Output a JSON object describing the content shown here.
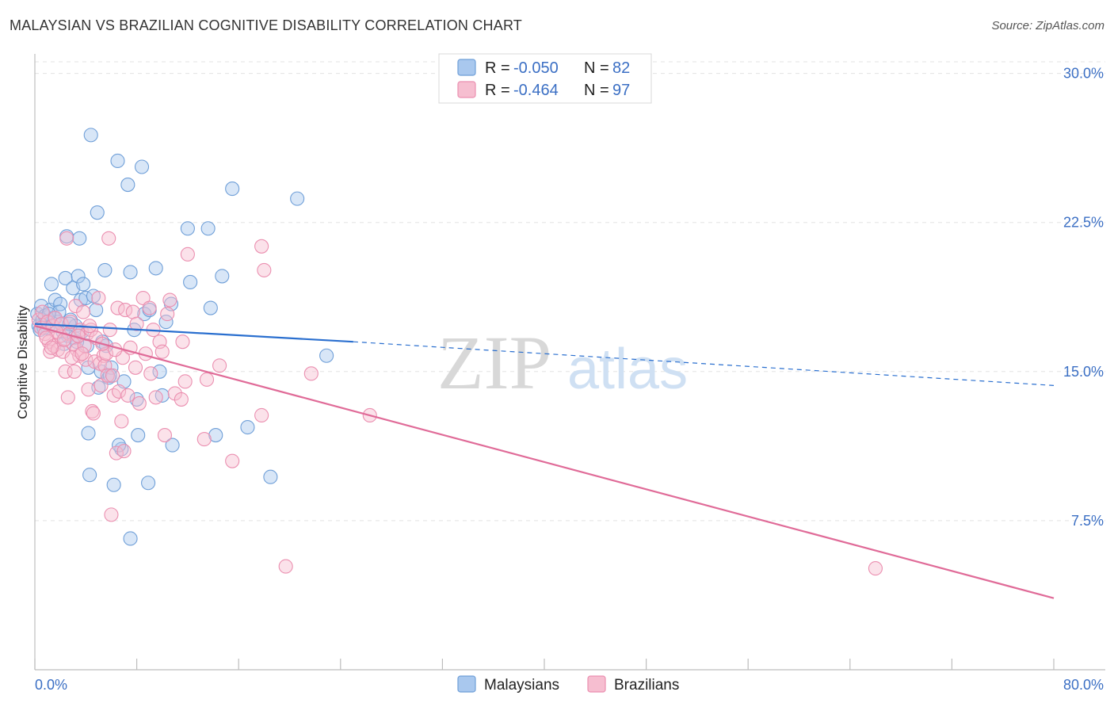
{
  "header": {
    "title": "MALAYSIAN VS BRAZILIAN COGNITIVE DISABILITY CORRELATION CHART",
    "source": "Source: ZipAtlas.com"
  },
  "watermark": {
    "zip": "ZIP",
    "atlas": "atlas"
  },
  "legend": {
    "rows": [
      {
        "r_label": "R = ",
        "r_value": "-0.050",
        "n_label": "N = ",
        "n_value": "82",
        "color": "#7aaee8"
      },
      {
        "r_label": "R = ",
        "r_value": "-0.464",
        "n_label": "N = ",
        "n_value": "97",
        "color": "#f19bb8"
      }
    ]
  },
  "bottom_legend": {
    "malaysians": "Malaysians",
    "brazilians": "Brazilians"
  },
  "colors": {
    "malaysian_fill": "#a9c8ee",
    "malaysian_stroke": "#6f9fd8",
    "malaysian_line": "#2a6fcf",
    "brazilian_fill": "#f6bed0",
    "brazilian_stroke": "#eb8fb0",
    "brazilian_line": "#e06b98",
    "grid": "#e3e3e3",
    "tick_text": "#3b6fc4"
  },
  "chart_data": {
    "type": "scatter",
    "title": "MALAYSIAN VS BRAZILIAN COGNITIVE DISABILITY CORRELATION CHART",
    "xlabel": "",
    "ylabel": "Cognitive Disability",
    "xlim": [
      0,
      80
    ],
    "ylim": [
      0,
      31.5
    ],
    "x_tick_labels": [
      "0.0%",
      "80.0%"
    ],
    "y_ticks": [
      7.5,
      15.0,
      22.5,
      30.0
    ],
    "y_tick_labels": [
      "7.5%",
      "15.0%",
      "22.5%",
      "30.0%"
    ],
    "grid": "horizontal dashed",
    "legend_placement": "top-center",
    "series": [
      {
        "name": "Malaysians",
        "r": -0.05,
        "n": 82,
        "trend": {
          "x": [
            0,
            25,
            80
          ],
          "y": [
            17.4,
            16.5,
            14.3
          ],
          "solid_until": 25
        },
        "points": [
          [
            0.2,
            17.9
          ],
          [
            0.3,
            17.3
          ],
          [
            0.4,
            17.1
          ],
          [
            0.5,
            18.3
          ],
          [
            0.6,
            17.6
          ],
          [
            0.8,
            17.8
          ],
          [
            1.0,
            17.2
          ],
          [
            1.2,
            18.1
          ],
          [
            1.3,
            19.4
          ],
          [
            1.5,
            17.7
          ],
          [
            1.6,
            18.6
          ],
          [
            1.8,
            17.5
          ],
          [
            2.0,
            18.4
          ],
          [
            2.2,
            17.0
          ],
          [
            2.4,
            19.7
          ],
          [
            2.5,
            21.8
          ],
          [
            2.6,
            16.8
          ],
          [
            2.8,
            17.6
          ],
          [
            3.0,
            19.2
          ],
          [
            3.1,
            16.7
          ],
          [
            3.2,
            17.3
          ],
          [
            3.4,
            19.8
          ],
          [
            3.5,
            21.7
          ],
          [
            3.6,
            18.6
          ],
          [
            3.8,
            19.4
          ],
          [
            4.0,
            18.7
          ],
          [
            4.1,
            16.3
          ],
          [
            4.2,
            15.2
          ],
          [
            4.4,
            26.9
          ],
          [
            4.6,
            18.8
          ],
          [
            4.8,
            18.1
          ],
          [
            4.9,
            23.0
          ],
          [
            5.0,
            14.2
          ],
          [
            5.2,
            15.0
          ],
          [
            5.3,
            16.5
          ],
          [
            5.5,
            20.1
          ],
          [
            5.6,
            16.3
          ],
          [
            5.8,
            14.7
          ],
          [
            6.0,
            15.2
          ],
          [
            6.2,
            9.3
          ],
          [
            6.5,
            25.6
          ],
          [
            6.8,
            11.1
          ],
          [
            7.0,
            14.5
          ],
          [
            7.3,
            24.4
          ],
          [
            7.5,
            20.0
          ],
          [
            7.8,
            17.1
          ],
          [
            8.0,
            13.6
          ],
          [
            8.1,
            11.8
          ],
          [
            8.4,
            25.3
          ],
          [
            8.6,
            17.9
          ],
          [
            8.9,
            9.4
          ],
          [
            9.0,
            18.1
          ],
          [
            9.5,
            20.2
          ],
          [
            9.8,
            15.0
          ],
          [
            10.0,
            13.8
          ],
          [
            10.3,
            17.5
          ],
          [
            10.7,
            18.4
          ],
          [
            10.8,
            11.3
          ],
          [
            12.0,
            22.2
          ],
          [
            12.2,
            19.5
          ],
          [
            13.6,
            22.2
          ],
          [
            13.8,
            18.2
          ],
          [
            14.2,
            11.8
          ],
          [
            14.7,
            19.8
          ],
          [
            15.5,
            24.2
          ],
          [
            16.7,
            12.2
          ],
          [
            18.5,
            9.7
          ],
          [
            20.6,
            23.7
          ],
          [
            22.9,
            15.8
          ],
          [
            4.2,
            11.9
          ],
          [
            4.3,
            9.8
          ],
          [
            7.5,
            6.6
          ],
          [
            1.4,
            17.3
          ],
          [
            1.9,
            18.0
          ],
          [
            2.3,
            16.4
          ],
          [
            3.3,
            16.5
          ],
          [
            5.9,
            14.8
          ],
          [
            0.7,
            17.2
          ],
          [
            1.1,
            17.9
          ],
          [
            2.7,
            17.4
          ],
          [
            3.7,
            17.0
          ],
          [
            6.6,
            11.3
          ]
        ]
      },
      {
        "name": "Brazilians",
        "r": -0.464,
        "n": 97,
        "trend": {
          "x": [
            0,
            80
          ],
          "y": [
            17.3,
            3.6
          ]
        },
        "points": [
          [
            0.3,
            17.6
          ],
          [
            0.5,
            17.2
          ],
          [
            0.6,
            18.0
          ],
          [
            0.8,
            16.9
          ],
          [
            1.0,
            17.5
          ],
          [
            1.1,
            16.5
          ],
          [
            1.2,
            16.0
          ],
          [
            1.4,
            17.3
          ],
          [
            1.5,
            16.3
          ],
          [
            1.6,
            17.7
          ],
          [
            1.8,
            16.1
          ],
          [
            2.0,
            16.8
          ],
          [
            2.1,
            17.4
          ],
          [
            2.2,
            16.0
          ],
          [
            2.4,
            15.0
          ],
          [
            2.5,
            21.7
          ],
          [
            2.6,
            13.7
          ],
          [
            2.7,
            16.9
          ],
          [
            2.8,
            17.5
          ],
          [
            3.0,
            16.4
          ],
          [
            3.1,
            15.0
          ],
          [
            3.2,
            18.3
          ],
          [
            3.3,
            16.1
          ],
          [
            3.5,
            15.8
          ],
          [
            3.6,
            17.1
          ],
          [
            3.8,
            18.0
          ],
          [
            3.9,
            16.3
          ],
          [
            4.0,
            15.6
          ],
          [
            4.1,
            16.9
          ],
          [
            4.2,
            14.1
          ],
          [
            4.4,
            17.1
          ],
          [
            4.5,
            13.0
          ],
          [
            4.6,
            12.9
          ],
          [
            4.7,
            15.5
          ],
          [
            4.8,
            16.7
          ],
          [
            5.0,
            18.7
          ],
          [
            5.1,
            15.4
          ],
          [
            5.2,
            14.3
          ],
          [
            5.4,
            15.8
          ],
          [
            5.5,
            15.3
          ],
          [
            5.6,
            15.9
          ],
          [
            5.7,
            14.8
          ],
          [
            5.8,
            21.7
          ],
          [
            5.9,
            17.1
          ],
          [
            6.0,
            7.8
          ],
          [
            6.1,
            14.8
          ],
          [
            6.2,
            13.8
          ],
          [
            6.4,
            10.9
          ],
          [
            6.5,
            18.2
          ],
          [
            6.6,
            14.0
          ],
          [
            6.8,
            12.5
          ],
          [
            6.9,
            15.7
          ],
          [
            7.0,
            11.0
          ],
          [
            7.1,
            18.1
          ],
          [
            7.3,
            13.8
          ],
          [
            7.5,
            16.2
          ],
          [
            7.7,
            18.0
          ],
          [
            8.0,
            17.4
          ],
          [
            8.2,
            13.4
          ],
          [
            8.5,
            18.7
          ],
          [
            8.7,
            15.9
          ],
          [
            9.0,
            18.2
          ],
          [
            9.3,
            17.1
          ],
          [
            9.5,
            13.7
          ],
          [
            9.8,
            16.5
          ],
          [
            10.0,
            16.0
          ],
          [
            10.2,
            11.8
          ],
          [
            10.6,
            18.6
          ],
          [
            11.0,
            13.9
          ],
          [
            11.5,
            13.6
          ],
          [
            11.6,
            16.5
          ],
          [
            11.8,
            14.5
          ],
          [
            12.0,
            20.9
          ],
          [
            13.3,
            11.6
          ],
          [
            13.5,
            14.6
          ],
          [
            14.5,
            15.3
          ],
          [
            15.5,
            10.5
          ],
          [
            17.8,
            12.8
          ],
          [
            17.8,
            21.3
          ],
          [
            18.0,
            20.1
          ],
          [
            19.7,
            5.2
          ],
          [
            21.7,
            14.9
          ],
          [
            26.3,
            12.8
          ],
          [
            66.0,
            5.1
          ],
          [
            1.7,
            17.0
          ],
          [
            2.3,
            16.6
          ],
          [
            2.9,
            15.7
          ],
          [
            3.4,
            16.8
          ],
          [
            4.3,
            17.3
          ],
          [
            5.3,
            16.4
          ],
          [
            0.9,
            16.7
          ],
          [
            1.3,
            16.2
          ],
          [
            3.7,
            15.9
          ],
          [
            6.3,
            16.1
          ],
          [
            7.9,
            15.2
          ],
          [
            9.1,
            14.9
          ],
          [
            10.4,
            17.9
          ]
        ]
      }
    ]
  }
}
